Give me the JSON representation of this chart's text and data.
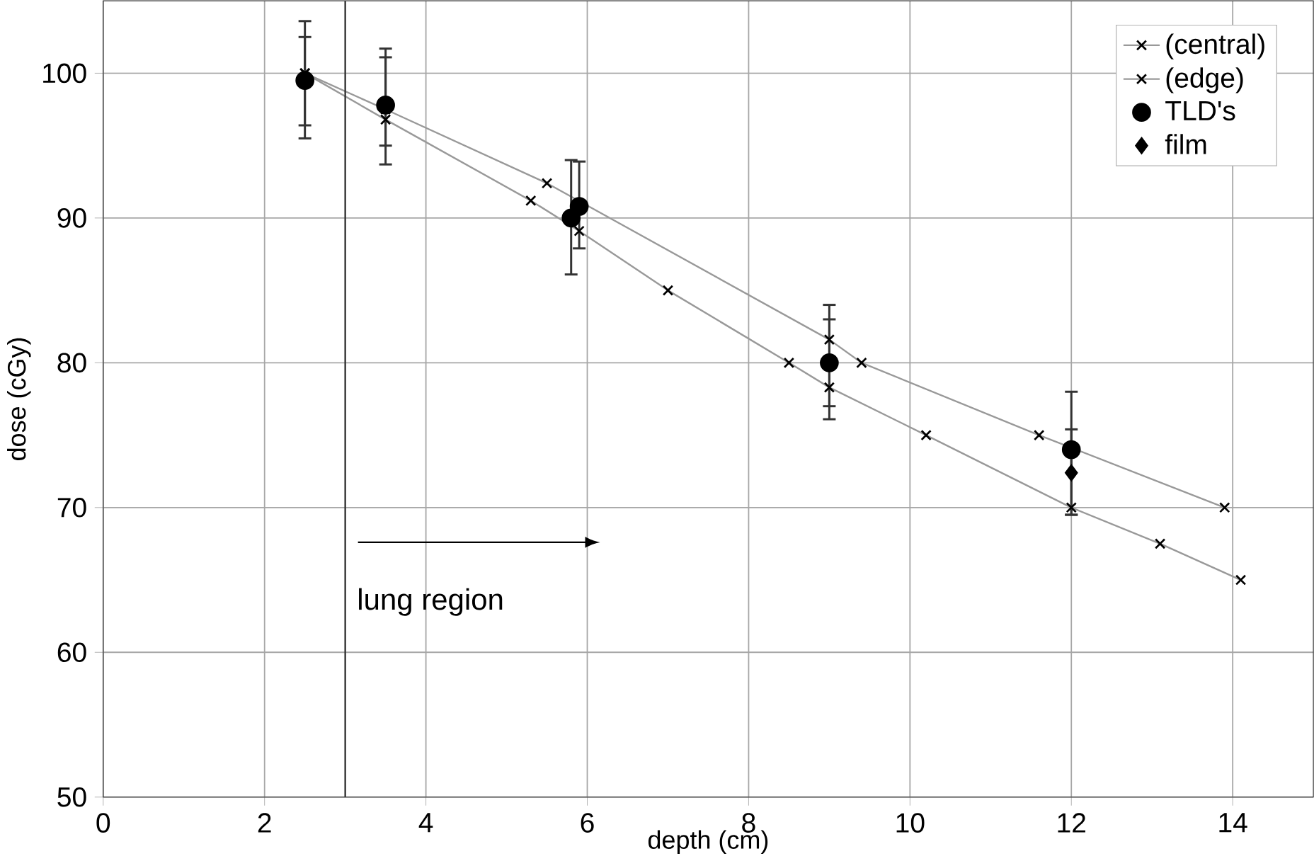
{
  "chart_data": {
    "type": "line",
    "xlabel": "depth (cm)",
    "ylabel": "dose (cGy)",
    "xlim": [
      0,
      15
    ],
    "xticks": [
      0,
      2,
      4,
      6,
      8,
      10,
      12,
      14
    ],
    "ylim": [
      50,
      105
    ],
    "yticks": [
      50,
      60,
      70,
      80,
      90,
      100
    ],
    "grid": true,
    "legend": "top right",
    "ref_lines": [
      {
        "axis": "x",
        "value": 3,
        "label": "lung region",
        "color": "#333333"
      }
    ],
    "series": [
      {
        "name": "(central)",
        "marker": "cross",
        "color": "#000000",
        "x": [
          2.5,
          3.5,
          5.5,
          9,
          9.4,
          11.6,
          13.9
        ],
        "values": [
          100,
          97.5,
          92.4,
          81.6,
          80,
          75,
          70
        ]
      },
      {
        "name": "(edge)",
        "marker": "cross",
        "color": "#000000",
        "x": [
          2.5,
          3.5,
          5.3,
          5.9,
          7,
          8.5,
          9,
          10.2,
          12,
          13.1,
          14.1
        ],
        "values": [
          100,
          96.8,
          91.2,
          89.1,
          85,
          80,
          78.3,
          75,
          70,
          67.5,
          65
        ],
        "errors": [
          [
            96.4,
            102.5
          ],
          [
            95,
            101.1
          ],
          null,
          [
            87.9,
            93.9
          ],
          null,
          null,
          [
            77,
            83
          ],
          null,
          [
            69.5,
            75.4
          ],
          null,
          null
        ]
      },
      {
        "name": "TLD's",
        "type": "scatter",
        "marker": "circle",
        "color": "#000000",
        "x": [
          2.5,
          3.5,
          5.8,
          5.9,
          9,
          12
        ],
        "values": [
          99.5,
          97.8,
          90,
          90.8,
          80,
          74
        ],
        "errors": [
          [
            95.5,
            103.6
          ],
          [
            93.7,
            101.7
          ],
          [
            86.1,
            94
          ],
          null,
          [
            76.1,
            84
          ],
          [
            69.5,
            78
          ]
        ]
      },
      {
        "name": "film",
        "type": "scatter",
        "marker": "diamond",
        "color": "#000000",
        "x": [
          12
        ],
        "values": [
          72.4
        ]
      }
    ]
  }
}
